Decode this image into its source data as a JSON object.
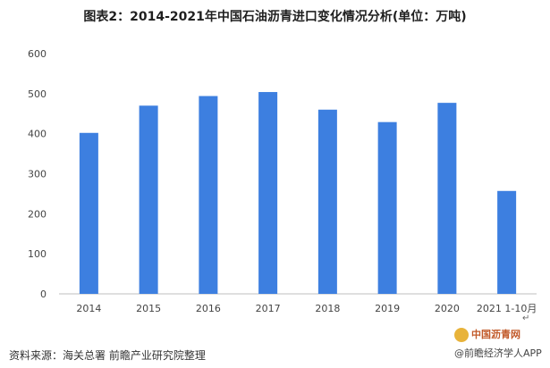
{
  "chart_data": {
    "type": "bar",
    "title": "图表2：2014-2021年中国石油沥青进口变化情况分析(单位：万吨)",
    "categories": [
      "2014",
      "2015",
      "2016",
      "2017",
      "2018",
      "2019",
      "2020",
      "2021 1-10月"
    ],
    "values": [
      402,
      470,
      494,
      504,
      460,
      429,
      477,
      257
    ],
    "ylim": [
      0,
      600
    ],
    "yticks": [
      0,
      100,
      200,
      300,
      400,
      500,
      600
    ],
    "bar_color": "#3d7fe0",
    "grid": false,
    "legend": "none"
  },
  "source_text": "资料来源：海关总署 前瞻产业研究院整理",
  "logo_primary": "中国沥青网",
  "logo_secondary": "@前瞻经济学人APP",
  "return_glyph": "↵"
}
